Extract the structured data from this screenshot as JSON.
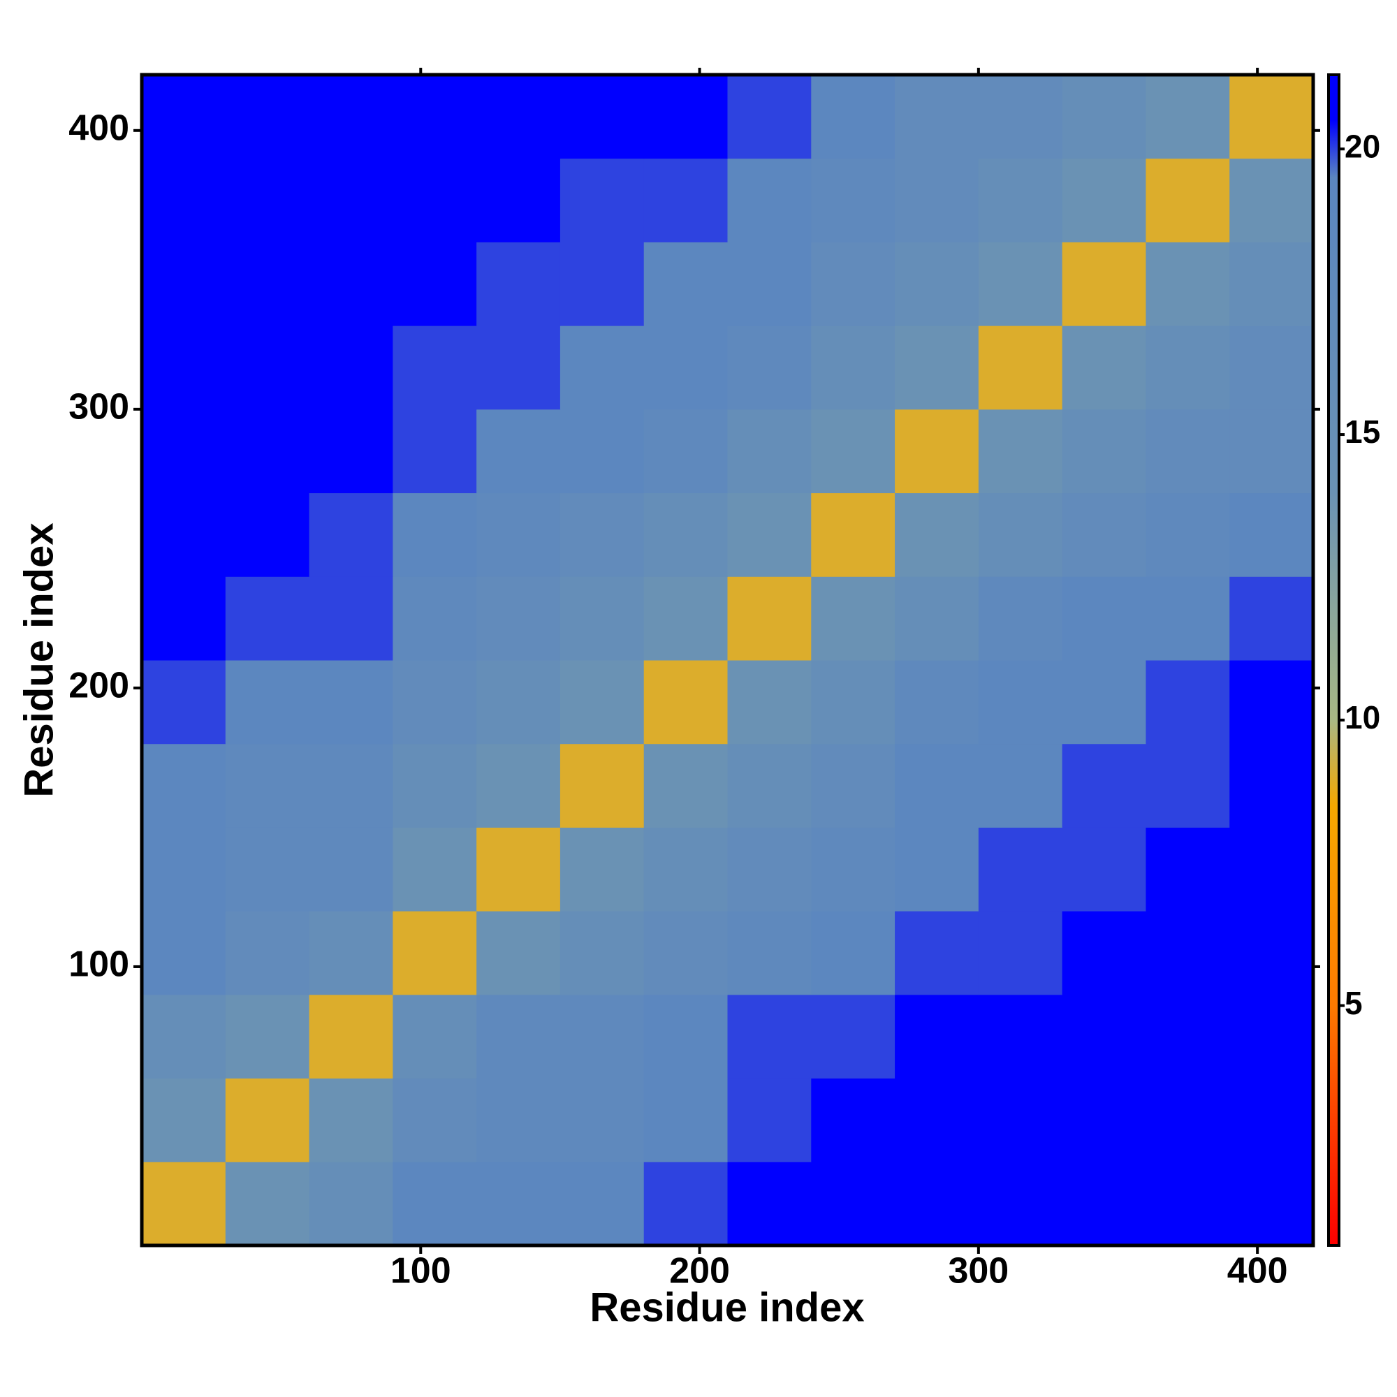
{
  "chart_data": {
    "type": "heatmap",
    "x_label": "Residue index",
    "y_label": "Residue index",
    "x": [
      15,
      45,
      75,
      105,
      135,
      165,
      195,
      225,
      255,
      285,
      315,
      345,
      375,
      405
    ],
    "y": [
      15,
      45,
      75,
      105,
      135,
      165,
      195,
      225,
      255,
      285,
      315,
      345,
      375,
      405
    ],
    "values": [
      [
        9,
        14,
        16,
        19,
        19,
        19,
        20,
        21,
        21,
        21,
        21,
        21,
        21,
        21
      ],
      [
        14,
        9,
        14,
        17,
        18,
        18,
        19,
        20,
        21,
        21,
        21,
        21,
        21,
        21
      ],
      [
        16,
        14,
        9,
        16,
        18,
        18,
        19,
        20,
        20,
        21,
        21,
        21,
        21,
        21
      ],
      [
        19,
        17,
        16,
        9,
        14,
        16,
        17,
        18,
        19,
        20,
        20,
        21,
        21,
        21
      ],
      [
        19,
        18,
        18,
        14,
        9,
        14,
        16,
        17,
        18,
        19,
        20,
        20,
        21,
        21
      ],
      [
        19,
        18,
        18,
        16,
        14,
        9,
        14,
        16,
        17,
        19,
        19,
        20,
        20,
        21
      ],
      [
        20,
        19,
        19,
        17,
        16,
        14,
        9,
        14,
        16,
        18,
        19,
        19,
        20,
        21
      ],
      [
        21,
        20,
        20,
        18,
        17,
        16,
        14,
        9,
        14,
        16,
        18,
        19,
        19,
        20
      ],
      [
        21,
        21,
        20,
        19,
        18,
        17,
        16,
        14,
        9,
        14,
        16,
        17,
        18,
        19
      ],
      [
        21,
        21,
        21,
        20,
        19,
        19,
        18,
        16,
        14,
        9,
        14,
        16,
        17,
        17
      ],
      [
        21,
        21,
        21,
        20,
        20,
        19,
        19,
        18,
        16,
        14,
        9,
        14,
        16,
        17
      ],
      [
        21,
        21,
        21,
        21,
        20,
        20,
        19,
        19,
        17,
        16,
        14,
        9,
        14,
        16
      ],
      [
        21,
        21,
        21,
        21,
        21,
        20,
        20,
        19,
        18,
        17,
        16,
        14,
        9,
        14
      ],
      [
        21,
        21,
        21,
        21,
        21,
        21,
        21,
        20,
        19,
        17,
        17,
        16,
        14,
        9
      ]
    ],
    "xlim": [
      0,
      420
    ],
    "ylim": [
      0,
      420
    ],
    "xticks": [
      100,
      200,
      300,
      400
    ],
    "yticks": [
      100,
      200,
      300,
      400
    ],
    "clim": [
      0.8,
      21.3
    ],
    "cticks": [
      5,
      10,
      15,
      20
    ],
    "colorscale": [
      [
        0.8,
        "#ff0000"
      ],
      [
        5,
        "#ff7a00"
      ],
      [
        8.5,
        "#f5a800"
      ],
      [
        10,
        "#a9b884"
      ],
      [
        14,
        "#6a92b4"
      ],
      [
        19.5,
        "#5b86c0"
      ],
      [
        20.5,
        "#0000ff"
      ],
      [
        21.3,
        "#0000ff"
      ]
    ]
  }
}
